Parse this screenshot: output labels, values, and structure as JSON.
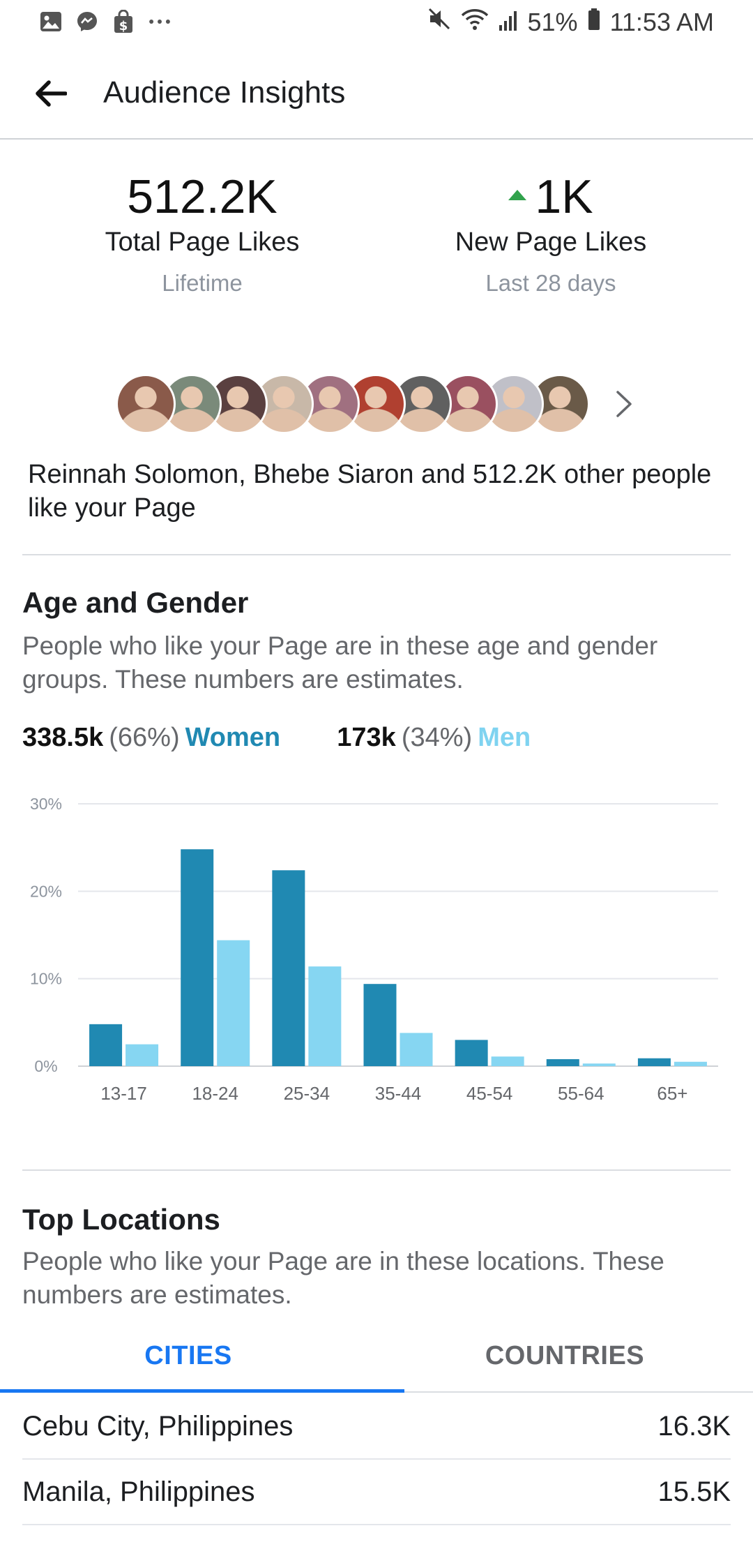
{
  "status_bar": {
    "left_icons": [
      "gallery-icon",
      "messenger-icon",
      "shop-icon",
      "more-icon"
    ],
    "battery": "51%",
    "time": "11:53 AM"
  },
  "app_bar": {
    "title": "Audience Insights"
  },
  "stats": {
    "total": {
      "value": "512.2K",
      "label": "Total Page Likes",
      "sub": "Lifetime"
    },
    "new": {
      "value": "1K",
      "label": "New Page Likes",
      "sub": "Last 28 days"
    }
  },
  "likers": {
    "avatar_colors": [
      "#8a5a4a",
      "#7a8a7a",
      "#5a4040",
      "#c8b8a8",
      "#a07080",
      "#b04030",
      "#606060",
      "#9a5060",
      "#c0c0c8",
      "#6a5a48"
    ],
    "text": "Reinnah Solomon, Bhebe Siaron and 512.2K other people like your Page"
  },
  "age_gender": {
    "title": "Age and Gender",
    "description": "People who like your Page are in these age and gender groups. These numbers are estimates.",
    "women": {
      "count": "338.5k",
      "pct": "(66%)",
      "label": "Women",
      "color": "#2089b2"
    },
    "men": {
      "count": "173k",
      "pct": "(34%)",
      "label": "Men",
      "color": "#7fd3f0"
    }
  },
  "chart_data": {
    "type": "bar",
    "categories": [
      "13-17",
      "18-24",
      "25-34",
      "35-44",
      "45-54",
      "55-64",
      "65+"
    ],
    "series": [
      {
        "name": "Women",
        "values": [
          4.8,
          24.8,
          22.4,
          9.4,
          3.0,
          0.8,
          0.9
        ]
      },
      {
        "name": "Men",
        "values": [
          2.5,
          14.4,
          11.4,
          3.8,
          1.1,
          0.3,
          0.5
        ]
      }
    ],
    "ylim": [
      0,
      30
    ],
    "y_ticks": [
      "0%",
      "10%",
      "20%",
      "30%"
    ],
    "grid": true,
    "colors": [
      "#2089b2",
      "#86d6f2"
    ]
  },
  "locations": {
    "title": "Top Locations",
    "description": "People who like your Page are in these locations. These numbers are estimates.",
    "tabs": [
      "CITIES",
      "COUNTRIES"
    ],
    "rows": [
      {
        "name": "Cebu City, Philippines",
        "value": "16.3K"
      },
      {
        "name": "Manila, Philippines",
        "value": "15.5K"
      }
    ]
  }
}
